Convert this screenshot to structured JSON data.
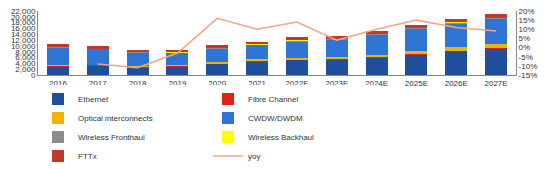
{
  "chart_data": {
    "type": "bar",
    "stacked": true,
    "grid": false,
    "legend": "bottom",
    "categories": [
      "2016",
      "2017",
      "2018",
      "2019",
      "2020",
      "2021",
      "2022E",
      "2023E",
      "2024E",
      "2025E",
      "2026E",
      "2027E"
    ],
    "series": [
      {
        "name": "Ethernet",
        "color": "#1f4e9b",
        "values": [
          2800,
          3100,
          2500,
          2900,
          3700,
          4600,
          5000,
          5200,
          5900,
          7000,
          8200,
          9000
        ]
      },
      {
        "name": "Fibre Channel",
        "color": "#e0201b",
        "values": [
          200,
          200,
          200,
          200,
          200,
          200,
          200,
          200,
          200,
          200,
          200,
          200
        ]
      },
      {
        "name": "Optical interconnects",
        "color": "#f0b400",
        "values": [
          300,
          300,
          500,
          400,
          500,
          600,
          700,
          800,
          900,
          1200,
          1300,
          1300
        ]
      },
      {
        "name": "CWDW/DWDM",
        "color": "#2e75d6",
        "values": [
          6000,
          5200,
          4400,
          4000,
          4600,
          4800,
          5600,
          5800,
          6800,
          7500,
          8000,
          8800
        ]
      },
      {
        "name": "Wireless Fronthaul",
        "color": "#8c8c8c",
        "values": [
          300,
          200,
          200,
          200,
          300,
          200,
          300,
          300,
          300,
          300,
          300,
          300
        ]
      },
      {
        "name": "Wireless Backhaul",
        "color": "#ffff00",
        "values": [
          100,
          100,
          100,
          100,
          100,
          100,
          100,
          100,
          100,
          100,
          100,
          100
        ]
      },
      {
        "name": "FTTx",
        "color": "#c0392b",
        "values": [
          1000,
          800,
          700,
          700,
          800,
          800,
          1100,
          1100,
          900,
          1000,
          1100,
          1200
        ]
      },
      {
        "name": "yoy",
        "color": "#f4a582",
        "type": "line",
        "axis": "y2",
        "values": [
          null,
          -9,
          -11,
          -3,
          16,
          10,
          14,
          4,
          10,
          15,
          11,
          9
        ]
      }
    ],
    "ylim": [
      0,
      22000
    ],
    "yticks": [
      0,
      {
        "value": 2000,
        "label": "2,000"
      },
      {
        "value": 4000,
        "label": "4,000"
      },
      {
        "value": 6000,
        "label": "6,000"
      },
      {
        "value": 8000,
        "label": "8,000"
      },
      {
        "value": 10000,
        "label": "10,000"
      },
      {
        "value": 12000,
        "label": "12,000"
      },
      {
        "value": 14000,
        "label": "14,000"
      },
      {
        "value": 16000,
        "label": "16,000"
      },
      {
        "value": 18000,
        "label": "18,000"
      },
      {
        "value": 20000,
        "label": "20,000"
      },
      {
        "value": 22000,
        "label": "22,000"
      }
    ],
    "y2lim": [
      -15,
      20
    ],
    "y2ticks": [
      {
        "value": -15,
        "label": "-15%"
      },
      {
        "value": -10,
        "label": "-10%"
      },
      {
        "value": -5,
        "label": "-5%"
      },
      {
        "value": 0,
        "label": "0%"
      },
      {
        "value": 5,
        "label": "5%"
      },
      {
        "value": 10,
        "label": "10%"
      },
      {
        "value": 15,
        "label": "15%"
      },
      {
        "value": 20,
        "label": "20%"
      }
    ]
  }
}
